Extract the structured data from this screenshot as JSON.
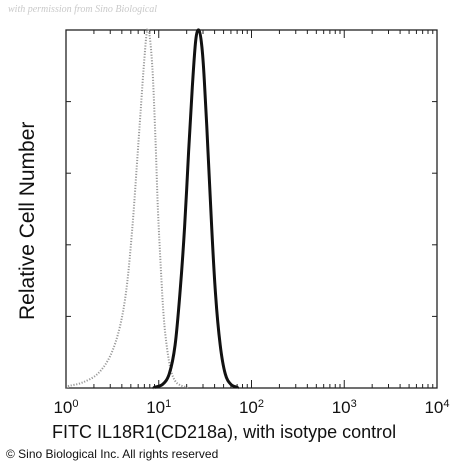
{
  "watermark": "with permission from Sino Biological",
  "copyright": "© Sino Biological Inc. All rights reserved",
  "chart_data": {
    "type": "line",
    "xlabel": "FITC IL18R1(CD218a), with isotype control",
    "ylabel": "Relative Cell Number",
    "xscale": "log",
    "xlim": [
      1,
      10000
    ],
    "ylim": [
      0,
      100
    ],
    "x_ticks": [
      {
        "base": "10",
        "exp": "0"
      },
      {
        "base": "10",
        "exp": "1"
      },
      {
        "base": "10",
        "exp": "2"
      },
      {
        "base": "10",
        "exp": "3"
      },
      {
        "base": "10",
        "exp": "4"
      }
    ],
    "grid": false,
    "legend": "none",
    "series": [
      {
        "style": "dotted",
        "color": "#9a9a9a",
        "x": [
          1.05,
          1.5,
          2.2,
          3.0,
          3.8,
          4.5,
          5.2,
          5.8,
          6.4,
          7.0,
          7.5,
          8.0,
          8.6,
          9.2,
          9.8,
          10.5,
          11.3,
          12.3,
          13.5,
          15.0,
          17.0,
          20.0
        ],
        "y": [
          0.5,
          1.5,
          4,
          9,
          17,
          28,
          45,
          62,
          78,
          92,
          100,
          98,
          88,
          70,
          50,
          34,
          20,
          11,
          5,
          2,
          0.8,
          0.2
        ]
      },
      {
        "style": "solid-thick",
        "color": "#111111",
        "x": [
          9.0,
          11.0,
          13.0,
          15.0,
          17.0,
          19.0,
          21.0,
          23.0,
          25.0,
          27.0,
          29.0,
          31.0,
          34.0,
          37.0,
          41.0,
          46.0,
          52.0,
          60.0,
          70.0
        ],
        "y": [
          0.2,
          1,
          4,
          12,
          27,
          45,
          66,
          84,
          97,
          100,
          96,
          86,
          66,
          46,
          26,
          12,
          4,
          1,
          0.2
        ]
      }
    ]
  }
}
